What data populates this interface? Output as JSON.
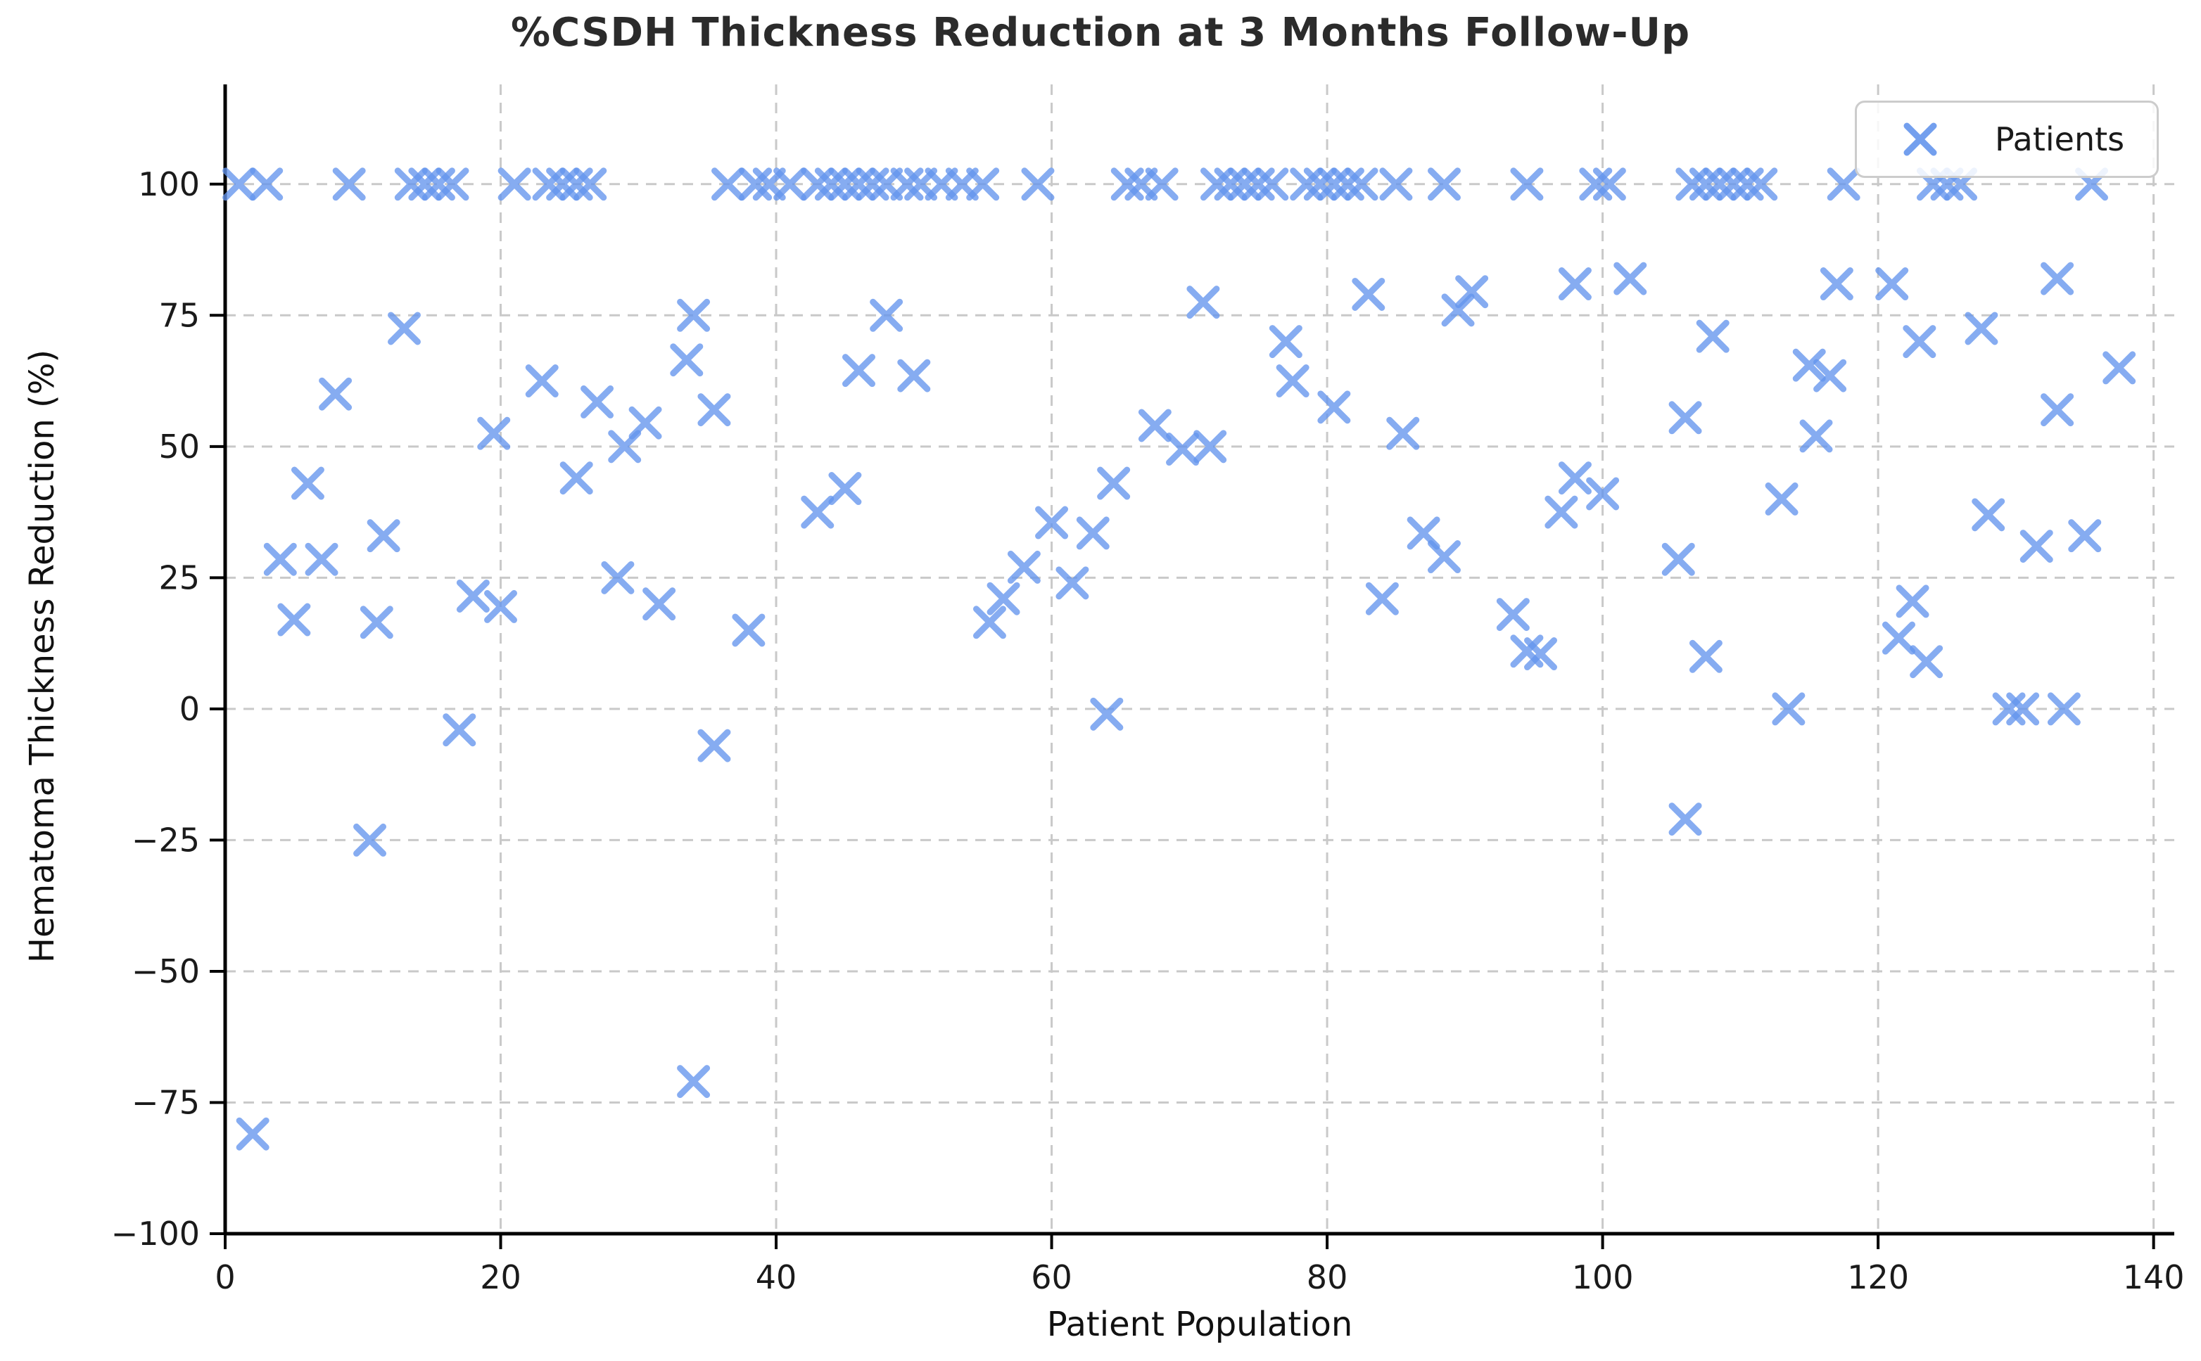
{
  "chart_data": {
    "type": "scatter",
    "title": "%CSDH Thickness Reduction at 3 Months Follow-Up",
    "xlabel": "Patient Population",
    "ylabel": "Hematoma Thickness Reduction (%)",
    "legend": {
      "label": "Patients",
      "position": "upper right",
      "marker": "x"
    },
    "marker": {
      "shape": "x",
      "color": "#6495ED",
      "opacity": 0.78,
      "half_size": 19,
      "stroke_width": 9
    },
    "axes": {
      "xlim": [
        0,
        141.5
      ],
      "ylim": [
        -100,
        119
      ],
      "xticks": [
        0,
        20,
        40,
        60,
        80,
        100,
        120,
        140
      ],
      "yticks": [
        -100,
        -75,
        -50,
        -25,
        0,
        25,
        50,
        75,
        100
      ],
      "grid": true,
      "grid_color": "#c9c9c9",
      "spine_color": "#000000",
      "tick_label_color": "#1a1a1a"
    },
    "points": [
      [
        1,
        100
      ],
      [
        3,
        100
      ],
      [
        9,
        100
      ],
      [
        13.5,
        100
      ],
      [
        14.5,
        100
      ],
      [
        15.5,
        100
      ],
      [
        16.5,
        100
      ],
      [
        21,
        100
      ],
      [
        23.5,
        100
      ],
      [
        24.5,
        100
      ],
      [
        25.5,
        100
      ],
      [
        26.5,
        100
      ],
      [
        36.5,
        100
      ],
      [
        38.5,
        100
      ],
      [
        39.5,
        100
      ],
      [
        41,
        100
      ],
      [
        43,
        100
      ],
      [
        44,
        100
      ],
      [
        45,
        100
      ],
      [
        46,
        100
      ],
      [
        47,
        100
      ],
      [
        48,
        100
      ],
      [
        49.5,
        100
      ],
      [
        50.5,
        100
      ],
      [
        52,
        100
      ],
      [
        53.5,
        100
      ],
      [
        55,
        100
      ],
      [
        59,
        100
      ],
      [
        65.5,
        100
      ],
      [
        66.5,
        100
      ],
      [
        68,
        100
      ],
      [
        72,
        100
      ],
      [
        73,
        100
      ],
      [
        74,
        100
      ],
      [
        75,
        100
      ],
      [
        76,
        100
      ],
      [
        78.5,
        100
      ],
      [
        79.5,
        100
      ],
      [
        80.5,
        100
      ],
      [
        81.5,
        100
      ],
      [
        82.5,
        100
      ],
      [
        85,
        100
      ],
      [
        88.5,
        100
      ],
      [
        94.5,
        100
      ],
      [
        99.5,
        100
      ],
      [
        100.5,
        100
      ],
      [
        106.5,
        100
      ],
      [
        107.5,
        100
      ],
      [
        108.5,
        100
      ],
      [
        109.5,
        100
      ],
      [
        110.5,
        100
      ],
      [
        111.5,
        100
      ],
      [
        117.5,
        100
      ],
      [
        124,
        100
      ],
      [
        125,
        100
      ],
      [
        126,
        100
      ],
      [
        135.5,
        100
      ],
      [
        2,
        -81
      ],
      [
        4,
        28.5
      ],
      [
        5,
        17
      ],
      [
        6,
        43
      ],
      [
        7,
        28.5
      ],
      [
        8,
        60
      ],
      [
        10.5,
        -25
      ],
      [
        11,
        16.5
      ],
      [
        11.5,
        33
      ],
      [
        13,
        72.5
      ],
      [
        17,
        -4
      ],
      [
        18,
        21.5
      ],
      [
        19.5,
        52.5
      ],
      [
        20,
        19.5
      ],
      [
        23,
        62.5
      ],
      [
        25.5,
        44
      ],
      [
        27,
        58.5
      ],
      [
        28.5,
        25
      ],
      [
        29,
        50
      ],
      [
        30.5,
        54.5
      ],
      [
        31.5,
        20
      ],
      [
        33.5,
        66.5
      ],
      [
        34,
        75
      ],
      [
        34,
        -71
      ],
      [
        35.5,
        57
      ],
      [
        35.5,
        -7
      ],
      [
        38,
        15
      ],
      [
        43,
        37.5
      ],
      [
        45,
        42
      ],
      [
        46,
        64.5
      ],
      [
        48,
        75
      ],
      [
        50,
        63.5
      ],
      [
        55.5,
        16.5
      ],
      [
        56.5,
        21
      ],
      [
        58,
        27
      ],
      [
        60,
        35.5
      ],
      [
        61.5,
        24
      ],
      [
        63,
        33.5
      ],
      [
        64,
        -1
      ],
      [
        64.5,
        43
      ],
      [
        67.5,
        54
      ],
      [
        69.5,
        49.5
      ],
      [
        71,
        77.5
      ],
      [
        71.5,
        50
      ],
      [
        77,
        70
      ],
      [
        77.5,
        62.5
      ],
      [
        80.5,
        57.5
      ],
      [
        83,
        79
      ],
      [
        84,
        21
      ],
      [
        85.5,
        52.5
      ],
      [
        87,
        33.5
      ],
      [
        88.5,
        29
      ],
      [
        89.5,
        76
      ],
      [
        90.5,
        79.5
      ],
      [
        93.5,
        18
      ],
      [
        94.5,
        11
      ],
      [
        95.5,
        10.5
      ],
      [
        97,
        37.5
      ],
      [
        98,
        44
      ],
      [
        98,
        81
      ],
      [
        100,
        41
      ],
      [
        102,
        82
      ],
      [
        105.5,
        28.5
      ],
      [
        106,
        -21
      ],
      [
        106,
        55.5
      ],
      [
        107.5,
        10
      ],
      [
        108,
        71
      ],
      [
        113,
        40
      ],
      [
        113.5,
        0
      ],
      [
        115,
        65.5
      ],
      [
        115.5,
        52
      ],
      [
        116.5,
        63.5
      ],
      [
        117,
        81
      ],
      [
        121,
        81
      ],
      [
        121.5,
        13.5
      ],
      [
        122.5,
        20.5
      ],
      [
        123,
        70
      ],
      [
        123.5,
        9
      ],
      [
        127.5,
        72.5
      ],
      [
        128,
        37
      ],
      [
        129.5,
        0
      ],
      [
        130.5,
        0
      ],
      [
        131.5,
        31
      ],
      [
        133,
        57
      ],
      [
        133,
        82
      ],
      [
        133.5,
        0
      ],
      [
        135,
        33
      ],
      [
        137.5,
        65
      ]
    ]
  }
}
